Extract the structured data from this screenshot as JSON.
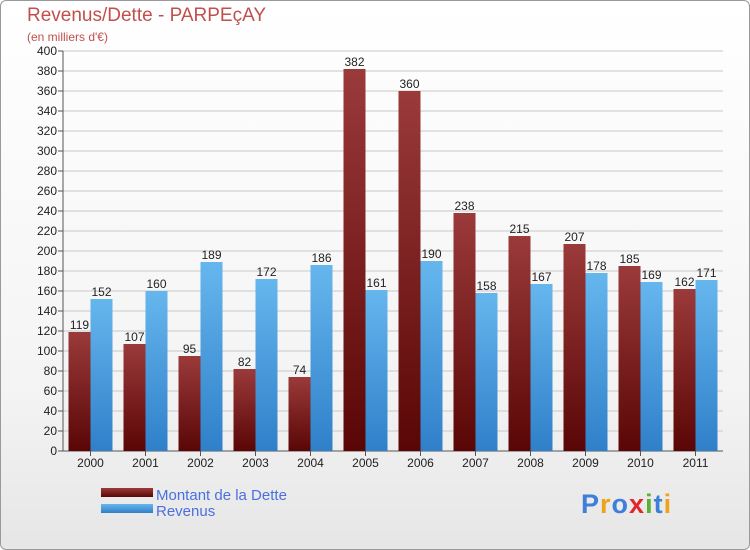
{
  "colors": {
    "debt_dark": "#5a0606",
    "debt_light": "#9b3a3a",
    "revenue_dark": "#2f80c9",
    "revenue_light": "#66b6ee",
    "grid": "#c8c8c8",
    "axis": "#555555",
    "title": "#c0504d",
    "legend_text": "#4a70e0"
  },
  "logo": {
    "text": "Proxiti",
    "letters": [
      {
        "ch": "P",
        "color": "#3d7fd9"
      },
      {
        "ch": "r",
        "color": "#f0a21a"
      },
      {
        "ch": "o",
        "color": "#3d7fd9"
      },
      {
        "ch": "x",
        "color": "#e2262c"
      },
      {
        "ch": "i",
        "color": "#5ab031"
      },
      {
        "ch": "t",
        "color": "#3d7fd9"
      },
      {
        "ch": "i",
        "color": "#f0a21a"
      }
    ]
  },
  "chart_data": {
    "type": "bar",
    "title": "Revenus/Dette - PARPEçAY",
    "subtitle": "(en milliers d'€)",
    "xlabel": "",
    "ylabel": "",
    "ylim": [
      0,
      400
    ],
    "ytick_step": 20,
    "grid": true,
    "legend_position": "bottom-left",
    "categories": [
      "2000",
      "2001",
      "2002",
      "2003",
      "2004",
      "2005",
      "2006",
      "2007",
      "2008",
      "2009",
      "2010",
      "2011"
    ],
    "series": [
      {
        "name": "Montant de la Dette",
        "values": [
          119,
          107,
          95,
          82,
          74,
          382,
          360,
          238,
          215,
          207,
          185,
          162
        ]
      },
      {
        "name": "Revenus",
        "values": [
          152,
          160,
          189,
          172,
          186,
          161,
          190,
          158,
          167,
          178,
          169,
          171
        ]
      }
    ]
  }
}
